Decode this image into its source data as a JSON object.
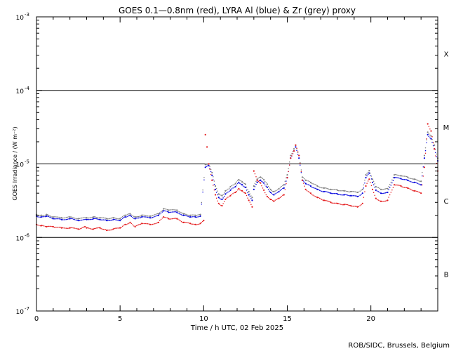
{
  "chart_data": {
    "type": "scatter",
    "title": "GOES 0.1—0.8nm (red), LYRA Al (blue) & Zr (grey) proxy",
    "xlabel": "Time / h UTC, 02 Feb 2025",
    "ylabel": "GOES Irradiance / (W m⁻²)",
    "xlim": [
      0,
      24
    ],
    "ylim": [
      1e-07,
      0.001
    ],
    "yscale": "log",
    "x_ticks": [
      {
        "value": 0,
        "label": "0"
      },
      {
        "value": 5,
        "label": "5"
      },
      {
        "value": 10,
        "label": "10"
      },
      {
        "value": 15,
        "label": "15"
      },
      {
        "value": 20,
        "label": "20"
      }
    ],
    "y_ticks": [
      {
        "value": 0.001,
        "base": "10",
        "exp": "-3"
      },
      {
        "value": 0.0001,
        "base": "10",
        "exp": "-4"
      },
      {
        "value": 1e-05,
        "base": "10",
        "exp": "-5"
      },
      {
        "value": 1e-06,
        "base": "10",
        "exp": "-6"
      },
      {
        "value": 1e-07,
        "base": "10",
        "exp": "-7"
      }
    ],
    "class_thresholds": [
      0.0001,
      1e-05,
      1e-06
    ],
    "flare_classes": [
      {
        "label": "X",
        "center": 0.000316
      },
      {
        "label": "M",
        "center": 3.16e-05
      },
      {
        "label": "C",
        "center": 3.16e-06
      },
      {
        "label": "B",
        "center": 3.16e-07
      }
    ],
    "series": [
      {
        "name": "GOES 0.1-0.8nm",
        "color": "#e41a1c",
        "x": [
          0.0,
          0.3,
          0.6,
          1.0,
          1.5,
          2.0,
          2.5,
          2.9,
          3.0,
          3.4,
          3.8,
          4.2,
          4.6,
          5.0,
          5.3,
          5.6,
          5.9,
          6.3,
          6.8,
          7.3,
          7.6,
          7.9,
          8.4,
          8.8,
          9.2,
          9.5,
          9.8,
          10.0,
          10.1,
          10.2,
          10.3,
          10.5,
          10.7,
          10.9,
          11.1,
          11.3,
          11.6,
          11.9,
          12.1,
          12.3,
          12.5,
          12.7,
          12.9,
          13.0,
          13.2,
          13.4,
          13.6,
          13.8,
          14.0,
          14.2,
          14.5,
          14.8,
          15.0,
          15.2,
          15.4,
          15.5,
          15.7,
          15.9,
          16.1,
          16.4,
          16.8,
          17.2,
          17.6,
          18.0,
          18.4,
          18.8,
          19.2,
          19.5,
          19.7,
          19.9,
          20.1,
          20.3,
          20.6,
          21.0,
          21.4,
          21.8,
          22.2,
          22.6,
          23.0,
          23.2,
          23.4,
          23.6,
          23.8,
          24.0
        ],
        "values": [
          1.5e-06,
          1.45e-06,
          1.4e-06,
          1.4e-06,
          1.35e-06,
          1.35e-06,
          1.3e-06,
          1.4e-06,
          1.35e-06,
          1.3e-06,
          1.35e-06,
          1.25e-06,
          1.3e-06,
          1.35e-06,
          1.5e-06,
          1.6e-06,
          1.4e-06,
          1.55e-06,
          1.5e-06,
          1.6e-06,
          1.9e-06,
          1.8e-06,
          1.8e-06,
          1.6e-06,
          1.55e-06,
          1.5e-06,
          1.55e-06,
          1.7e-06,
          2.5e-05,
          1.7e-05,
          1e-05,
          6e-06,
          3.8e-06,
          2.9e-06,
          2.7e-06,
          3.3e-06,
          3.7e-06,
          4.1e-06,
          4.6e-06,
          4.3e-06,
          4e-06,
          3.2e-06,
          2.6e-06,
          8e-06,
          6e-06,
          5.5e-06,
          4.4e-06,
          3.6e-06,
          3.3e-06,
          3.1e-06,
          3.4e-06,
          3.8e-06,
          6.5e-06,
          1.2e-05,
          1.5e-05,
          1.8e-05,
          1.3e-05,
          6e-06,
          4.5e-06,
          4e-06,
          3.5e-06,
          3.2e-06,
          3e-06,
          2.9e-06,
          2.8e-06,
          2.7e-06,
          2.6e-06,
          2.9e-06,
          5e-06,
          6.2e-06,
          4.5e-06,
          3.4e-06,
          3.1e-06,
          3.2e-06,
          5.2e-06,
          5e-06,
          4.7e-06,
          4.3e-06,
          4e-06,
          9e-06,
          3.5e-05,
          2.8e-05,
          1.6e-05,
          8e-06
        ]
      },
      {
        "name": "LYRA Al proxy",
        "color": "#0000dd",
        "x": [
          0.0,
          0.3,
          0.6,
          1.0,
          1.5,
          2.0,
          2.5,
          3.0,
          3.4,
          3.8,
          4.2,
          4.6,
          5.0,
          5.3,
          5.6,
          5.9,
          6.3,
          6.8,
          7.3,
          7.6,
          7.9,
          8.4,
          8.8,
          9.2,
          9.5,
          9.8,
          10.1,
          10.3,
          10.5,
          10.7,
          10.9,
          11.1,
          11.3,
          11.6,
          11.9,
          12.1,
          12.3,
          12.5,
          12.7,
          12.9,
          13.0,
          13.2,
          13.4,
          13.6,
          13.8,
          14.0,
          14.2,
          14.5,
          14.8,
          15.0,
          15.2,
          15.4,
          15.5,
          15.7,
          15.9,
          16.1,
          16.4,
          16.8,
          17.2,
          17.6,
          18.0,
          18.4,
          18.8,
          19.2,
          19.5,
          19.7,
          19.9,
          20.1,
          20.3,
          20.6,
          21.0,
          21.4,
          21.8,
          22.2,
          22.6,
          23.0,
          23.2,
          23.4,
          23.6,
          23.8,
          24.0
        ],
        "values": [
          1.95e-06,
          1.9e-06,
          1.95e-06,
          1.8e-06,
          1.75e-06,
          1.8e-06,
          1.7e-06,
          1.75e-06,
          1.8e-06,
          1.75e-06,
          1.7e-06,
          1.75e-06,
          1.7e-06,
          1.9e-06,
          2e-06,
          1.8e-06,
          1.9e-06,
          1.85e-06,
          2e-06,
          2.3e-06,
          2.2e-06,
          2.2e-06,
          2e-06,
          1.9e-06,
          1.9e-06,
          1.95e-06,
          9e-06,
          9.5e-06,
          7e-06,
          4.5e-06,
          3.5e-06,
          3.3e-06,
          3.9e-06,
          4.4e-06,
          4.9e-06,
          5.6e-06,
          5.2e-06,
          4.8e-06,
          3.8e-06,
          3.2e-06,
          4.5e-06,
          5.6e-06,
          6e-06,
          5.5e-06,
          4.8e-06,
          4.1e-06,
          3.8e-06,
          4.2e-06,
          4.7e-06,
          6.5e-06,
          1.2e-05,
          1.5e-05,
          1.7e-05,
          1.2e-05,
          6e-06,
          5.4e-06,
          5e-06,
          4.5e-06,
          4.2e-06,
          4e-06,
          3.9e-06,
          3.8e-06,
          3.7e-06,
          3.6e-06,
          4e-06,
          6.5e-06,
          7.5e-06,
          5.6e-06,
          4.4e-06,
          4e-06,
          4.1e-06,
          6.5e-06,
          6.3e-06,
          6e-06,
          5.6e-06,
          5.2e-06,
          1.2e-05,
          2.5e-05,
          2.2e-05,
          1.6e-05,
          1.1e-05
        ]
      },
      {
        "name": "LYRA Zr proxy",
        "color": "#808080",
        "x": [
          0.0,
          0.3,
          0.6,
          1.0,
          1.5,
          2.0,
          2.5,
          3.0,
          3.4,
          3.8,
          4.2,
          4.6,
          5.0,
          5.3,
          5.6,
          5.9,
          6.3,
          6.8,
          7.3,
          7.6,
          7.9,
          8.4,
          8.8,
          9.2,
          9.5,
          9.8,
          10.1,
          10.3,
          10.5,
          10.7,
          10.9,
          11.1,
          11.3,
          11.6,
          11.9,
          12.1,
          12.3,
          12.5,
          12.7,
          12.9,
          13.0,
          13.2,
          13.4,
          13.6,
          13.8,
          14.0,
          14.2,
          14.5,
          14.8,
          15.0,
          15.2,
          15.4,
          15.5,
          15.7,
          15.9,
          16.1,
          16.4,
          16.8,
          17.2,
          17.6,
          18.0,
          18.4,
          18.8,
          19.2,
          19.5,
          19.7,
          19.9,
          20.1,
          20.3,
          20.6,
          21.0,
          21.4,
          21.8,
          22.2,
          22.6,
          23.0,
          23.2,
          23.4,
          23.6,
          23.8,
          24.0
        ],
        "values": [
          2.05e-06,
          2e-06,
          2.05e-06,
          1.9e-06,
          1.85e-06,
          1.9e-06,
          1.8e-06,
          1.85e-06,
          1.9e-06,
          1.85e-06,
          1.8e-06,
          1.85e-06,
          1.8e-06,
          2e-06,
          2.1e-06,
          1.9e-06,
          2e-06,
          1.95e-06,
          2.1e-06,
          2.45e-06,
          2.35e-06,
          2.35e-06,
          2.1e-06,
          2e-06,
          2e-06,
          2.05e-06,
          9.8e-06,
          1e-05,
          7.6e-06,
          5e-06,
          3.9e-06,
          3.7e-06,
          4.3e-06,
          4.9e-06,
          5.4e-06,
          6.1e-06,
          5.7e-06,
          5.3e-06,
          4.2e-06,
          3.5e-06,
          5e-06,
          6.2e-06,
          6.6e-06,
          6.1e-06,
          5.3e-06,
          4.5e-06,
          4.2e-06,
          4.6e-06,
          5.2e-06,
          7.1e-06,
          1.3e-05,
          1.6e-05,
          1.8e-05,
          1.3e-05,
          6.6e-06,
          6e-06,
          5.6e-06,
          5e-06,
          4.7e-06,
          4.5e-06,
          4.4e-06,
          4.3e-06,
          4.2e-06,
          4.1e-06,
          4.5e-06,
          7.1e-06,
          8.1e-06,
          6.2e-06,
          4.9e-06,
          4.5e-06,
          4.6e-06,
          7.1e-06,
          6.9e-06,
          6.6e-06,
          6.2e-06,
          5.8e-06,
          1.3e-05,
          2.7e-05,
          2.4e-05,
          1.8e-05,
          1.2e-05
        ]
      }
    ],
    "credit": "ROB/SIDC, Brussels, Belgium"
  }
}
